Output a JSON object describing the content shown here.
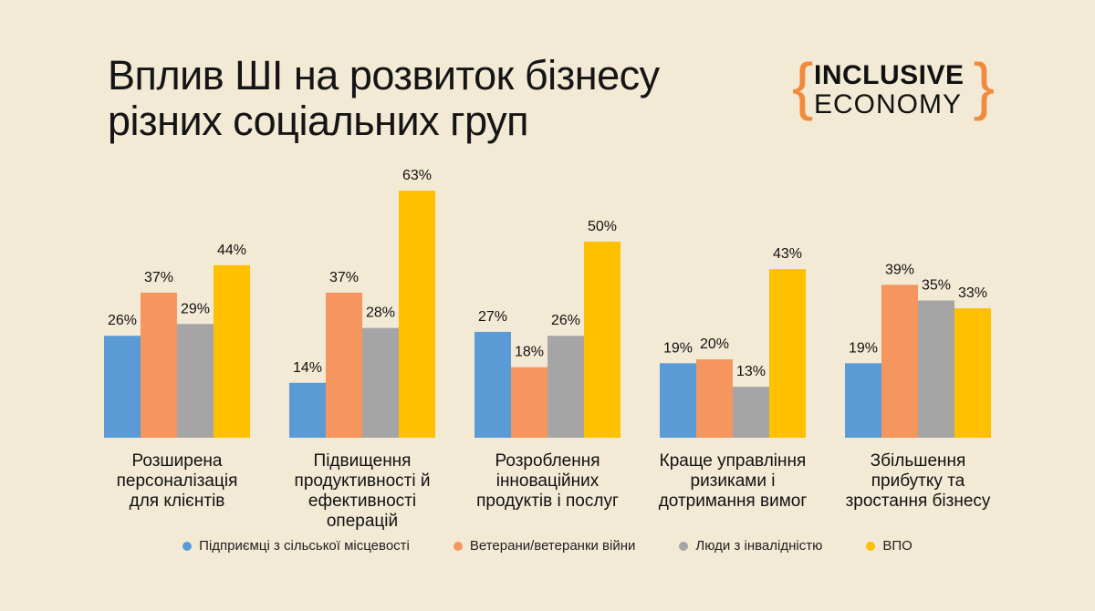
{
  "title_lines": [
    "Вплив ШІ на розвиток бізнесу",
    "різних соціальних груп"
  ],
  "logo": {
    "brace_left": "{",
    "brace_right": "}",
    "line1": "INCLUSIVE",
    "line2": "ECONOMY",
    "brace_color": "#f28a3c"
  },
  "chart_data": {
    "type": "bar",
    "categories": [
      [
        "Розширена",
        "персоналізація",
        "для клієнтів"
      ],
      [
        "Підвищення",
        "продуктивності й",
        "ефективності",
        "операцій"
      ],
      [
        "Розроблення",
        "інноваційних",
        "продуктів і послуг"
      ],
      [
        "Краще управління",
        "ризиками і",
        "дотримання вимог"
      ],
      [
        "Збільшення",
        "прибутку та",
        "зростання бізнесу"
      ]
    ],
    "series": [
      {
        "name": "Підприємці з сільської місцевості",
        "color": "#5b9bd5",
        "values": [
          26,
          14,
          27,
          19,
          19
        ]
      },
      {
        "name": "Ветерани/ветеранки війни",
        "color": "#f4965e",
        "values": [
          37,
          37,
          18,
          20,
          39
        ]
      },
      {
        "name": "Люди з інвалідністю",
        "color": "#a5a5a5",
        "values": [
          29,
          28,
          26,
          13,
          35
        ]
      },
      {
        "name": "ВПО",
        "color": "#ffc000",
        "values": [
          44,
          63,
          50,
          43,
          33
        ]
      }
    ],
    "value_suffix": "%",
    "ylim": [
      0,
      63
    ],
    "grid": false,
    "legend_position": "bottom"
  }
}
